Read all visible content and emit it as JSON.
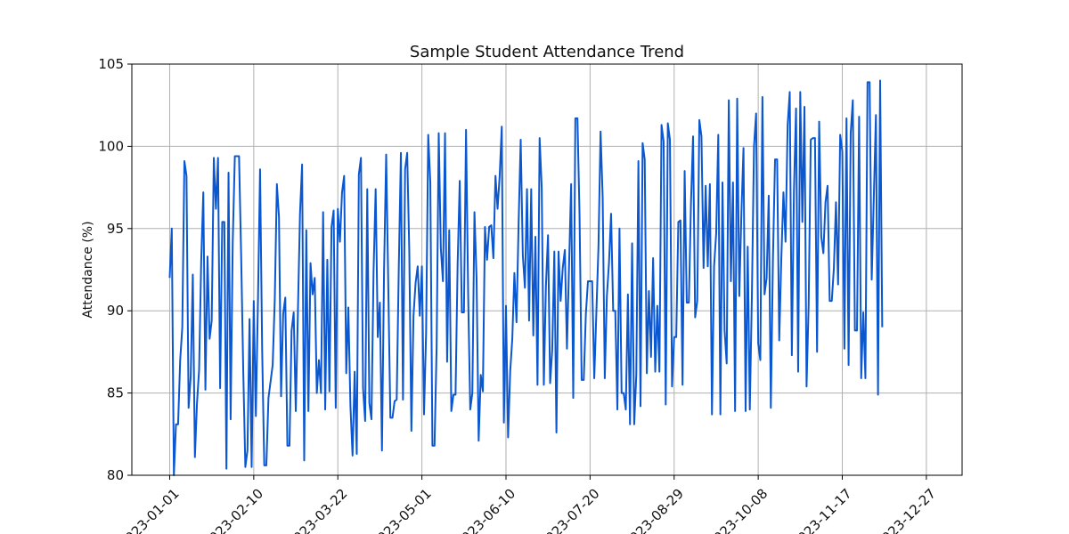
{
  "chart_data": {
    "type": "line",
    "title": "Sample Student Attendance Trend",
    "xlabel": "",
    "ylabel": "Attendance (%)",
    "ylim": [
      80,
      105
    ],
    "xlim": [
      "2022-12-14",
      "2024-01-13"
    ],
    "grid": true,
    "line_color": "#0b57d0",
    "x_ticks": [
      "2023-01-01",
      "2023-02-10",
      "2023-03-22",
      "2023-05-01",
      "2023-06-10",
      "2023-07-20",
      "2023-08-29",
      "2023-10-08",
      "2023-11-17",
      "2023-12-27"
    ],
    "y_ticks": [
      80,
      85,
      90,
      95,
      100,
      105
    ],
    "x_start": "2023-01-01",
    "values": [
      92,
      95,
      80,
      83.1,
      83.1,
      87,
      89,
      99.1,
      98.2,
      84.1,
      86,
      92.2,
      81.1,
      84.4,
      86.4,
      93,
      97.2,
      85.2,
      93.3,
      88.3,
      89.4,
      99.3,
      96.2,
      99.3,
      85.3,
      95.4,
      95.4,
      80.4,
      98.4,
      83.4,
      94.2,
      99.4,
      99.4,
      99.4,
      93.4,
      86.4,
      80.5,
      81.5,
      89.5,
      80.5,
      90.6,
      83.6,
      90.6,
      98.6,
      87.6,
      80.6,
      80.6,
      84.7,
      85.7,
      86.7,
      90.7,
      97.7,
      95.7,
      84.8,
      89.8,
      90.8,
      81.8,
      81.8,
      88.8,
      89.9,
      83.9,
      89.9,
      95.9,
      98.9,
      80.9,
      94.9,
      83.9,
      92.9,
      91,
      92,
      85,
      87,
      85,
      96,
      84,
      93.1,
      85.1,
      95.1,
      96.1,
      84.1,
      96.2,
      94.2,
      97.2,
      98.2,
      86.2,
      90.2,
      84.2,
      81.2,
      86.3,
      81.3,
      98.3,
      99.3,
      85.3,
      83.3,
      97.4,
      84.4,
      83.4,
      92.4,
      97.4,
      88.4,
      90.5,
      81.5,
      92.5,
      99.5,
      91.5,
      83.5,
      83.5,
      84.5,
      84.6,
      92.6,
      99.6,
      84.6,
      98.6,
      99.6,
      93.6,
      82.7,
      89.7,
      91.7,
      92.7,
      89.7,
      92.7,
      83.7,
      88.7,
      100.7,
      97.8,
      81.8,
      81.8,
      87.8,
      100.8,
      93.8,
      91.8,
      100.8,
      86.9,
      94.9,
      83.9,
      84.9,
      84.9,
      92.9,
      97.9,
      89.9,
      89.9,
      101,
      91,
      84,
      85,
      96,
      92,
      82.1,
      86.1,
      85.1,
      95.1,
      93.1,
      95.1,
      95.2,
      93.2,
      98.2,
      96.2,
      98.2,
      101.2,
      83.2,
      90.3,
      82.3,
      86.3,
      88.3,
      92.3,
      89.3,
      95.3,
      100.4,
      93.4,
      91.4,
      97.4,
      89.4,
      97.4,
      88.5,
      94.5,
      85.5,
      100.5,
      97.5,
      85.5,
      91.5,
      94.6,
      85.6,
      87.6,
      93.6,
      82.6,
      93.6,
      90.6,
      92.6,
      93.7,
      87.7,
      92.7,
      97.7,
      84.7,
      101.7,
      101.7,
      95.8,
      85.8,
      85.8,
      89.8,
      91.8,
      91.8,
      91.8,
      85.9,
      89.9,
      93.9,
      100.9,
      96.9,
      85.9,
      90.9,
      92.9,
      95.9,
      90,
      90,
      84,
      95,
      85,
      85,
      84,
      91,
      83.1,
      94.1,
      83.1,
      86.1,
      99.1,
      84.2,
      100.2,
      99.2,
      86.2,
      91.2,
      87.2,
      93.2,
      86.3,
      90.3,
      86.3,
      101.3,
      100.3,
      84.3,
      101.4,
      100.4,
      85.4,
      88.4,
      88.4,
      95.4,
      95.5,
      85.5,
      98.5,
      90.5,
      90.5,
      96.5,
      100.6,
      89.6,
      90.6,
      101.6,
      100.6,
      92.6,
      97.6,
      92.7,
      97.7,
      83.7,
      92.7,
      94.7,
      100.7,
      83.7,
      97.8,
      88.8,
      86.8,
      102.8,
      91.8,
      97.8,
      83.9,
      102.9,
      90.9,
      95.9,
      99.9,
      83.9,
      93.9,
      84,
      91,
      100,
      102,
      88,
      87,
      103,
      91,
      92,
      97,
      84.1,
      93.1,
      99.2,
      99.2,
      88.2,
      93.2,
      97.2,
      94.2,
      101.3,
      103.3,
      87.3,
      97.3,
      102.3,
      86.3,
      103.3,
      95.4,
      102.4,
      85.4,
      90.4,
      100.4,
      100.5,
      100.5,
      87.5,
      101.5,
      94.5,
      93.5,
      96.6,
      97.6,
      90.6,
      90.6,
      92.6,
      96.6,
      91.6,
      100.7,
      99.7,
      87.7,
      101.7,
      86.7,
      100.8,
      102.8,
      88.8,
      88.8,
      101.8,
      85.9,
      89.9,
      85.9,
      103.9,
      103.9,
      91.9,
      96.9,
      101.9,
      84.9,
      104,
      89
    ]
  }
}
